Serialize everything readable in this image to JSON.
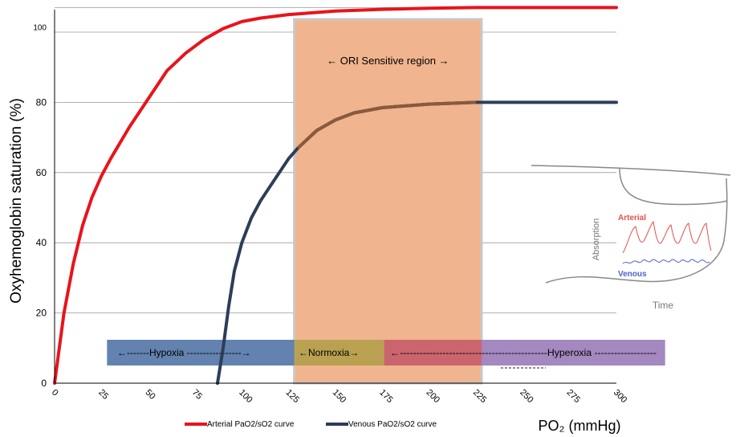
{
  "chart_data": {
    "type": "line",
    "title": "",
    "xlabel": "PO₂ (mmHg)",
    "ylabel": "Oxyhemoglobin saturation (%)",
    "xlim": [
      0,
      300
    ],
    "ylim": [
      0,
      100
    ],
    "grid": true,
    "legend": "bottom",
    "x_ticks": [
      "0",
      "25",
      "50",
      "75",
      "100",
      "125",
      "150",
      "175",
      "200",
      "225",
      "250",
      "275",
      "300"
    ],
    "y_ticks": [
      "0",
      "20",
      "40",
      "60",
      "80",
      "100"
    ],
    "series": [
      {
        "name": "Arterial PaO2/sO2 curve",
        "color": "#e8141b",
        "x": [
          0,
          5,
          10,
          15,
          20,
          25,
          30,
          40,
          50,
          60,
          70,
          80,
          90,
          100,
          110,
          125,
          150,
          175,
          200,
          225,
          250,
          300
        ],
        "y": [
          0,
          20,
          34,
          45,
          53,
          59,
          64,
          73,
          81,
          89,
          94,
          98,
          101,
          103,
          104,
          105,
          106,
          106.5,
          106.8,
          107,
          107,
          107
        ]
      },
      {
        "name": "Venous PaO2/sO2 curve",
        "color": "#2e3d58",
        "x": [
          87,
          90,
          93,
          96,
          100,
          105,
          110,
          115,
          120,
          125,
          130,
          140,
          150,
          160,
          175,
          200,
          225,
          250,
          300
        ],
        "y": [
          0,
          10,
          22,
          32,
          40,
          47,
          52,
          56,
          60,
          64,
          67,
          72,
          75,
          77,
          78.5,
          79.5,
          80,
          80,
          80
        ]
      }
    ],
    "annotations": {
      "ori_region": {
        "label": "← ORI Sensitive region →",
        "x_range": [
          128,
          228
        ],
        "color": "#f0b48e",
        "border": "#c8c8c8"
      },
      "bands": [
        {
          "label": "←-------Hypoxia -----------------→",
          "x_range": [
            28,
            128
          ],
          "color": "#5b7bab"
        },
        {
          "label": "←Normoxia→",
          "x_range": [
            128,
            176
          ],
          "color": "#b5a04e"
        },
        {
          "label": "←---------------------------------------------Hyperoxia -------------------",
          "x_range": [
            176,
            228
          ],
          "color": "#c8616b"
        },
        {
          "label": "",
          "x_range": [
            228,
            326
          ],
          "color": "#9f82bd"
        }
      ],
      "hyperoxia_arrow": "--------→"
    }
  },
  "inset": {
    "absorption_label": "Absorption",
    "time_label": "Time",
    "arterial_label": "Arterial",
    "venous_label": "Venous",
    "arterial_color": "#e05050",
    "venous_color": "#5060c8"
  }
}
